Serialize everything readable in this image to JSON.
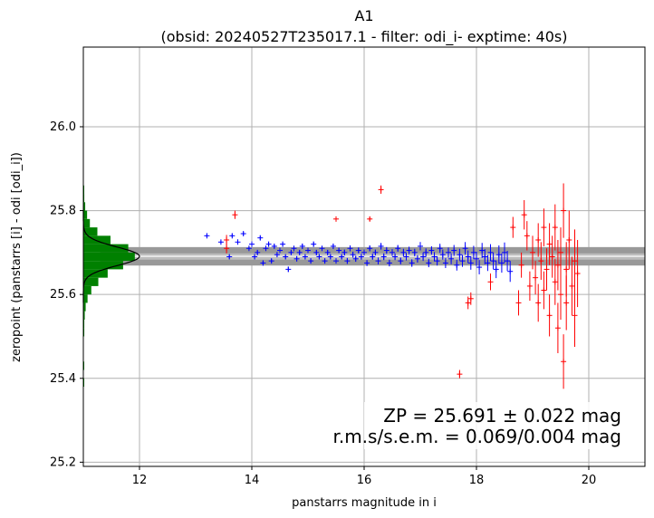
{
  "chart_data": {
    "type": "scatter",
    "title": "A1",
    "subtitle": "(obsid: 20240527T235017.1 - filter: odi_i- exptime: 40s)",
    "xlabel": "panstarrs magnitude in i",
    "ylabel": "zeropoint (panstarrs [i] - odi [odi_i])",
    "xlim": [
      11.0,
      21.0
    ],
    "ylim": [
      25.19,
      26.19
    ],
    "x_ticks": [
      12,
      14,
      16,
      18,
      20
    ],
    "y_ticks": [
      25.2,
      25.4,
      25.6,
      25.8,
      26.0
    ],
    "grid": true,
    "zeropoint": 25.691,
    "zeropoint_band": [
      25.669,
      25.713
    ],
    "inner_band": [
      25.683,
      25.698
    ],
    "colors": {
      "used": "#0000ff",
      "rejected": "#ff0000",
      "histogram": "#008000",
      "band": "#999999",
      "gaussian": "#000000",
      "grid": "#b0b0b0"
    },
    "series": [
      {
        "role": "used",
        "points": [
          [
            13.2,
            25.74,
            0.004
          ],
          [
            13.45,
            25.725,
            0.004
          ],
          [
            13.6,
            25.69,
            0.005
          ],
          [
            13.65,
            25.74,
            0.004
          ],
          [
            13.75,
            25.725,
            0.004
          ],
          [
            13.85,
            25.745,
            0.004
          ],
          [
            13.95,
            25.71,
            0.004
          ],
          [
            14.0,
            25.72,
            0.005
          ],
          [
            14.05,
            25.69,
            0.005
          ],
          [
            14.1,
            25.7,
            0.005
          ],
          [
            14.15,
            25.735,
            0.005
          ],
          [
            14.2,
            25.675,
            0.005
          ],
          [
            14.25,
            25.71,
            0.005
          ],
          [
            14.3,
            25.72,
            0.005
          ],
          [
            14.35,
            25.68,
            0.005
          ],
          [
            14.4,
            25.715,
            0.005
          ],
          [
            14.45,
            25.695,
            0.005
          ],
          [
            14.5,
            25.705,
            0.005
          ],
          [
            14.55,
            25.72,
            0.005
          ],
          [
            14.6,
            25.69,
            0.005
          ],
          [
            14.65,
            25.66,
            0.006
          ],
          [
            14.7,
            25.7,
            0.005
          ],
          [
            14.75,
            25.71,
            0.005
          ],
          [
            14.8,
            25.685,
            0.006
          ],
          [
            14.85,
            25.7,
            0.005
          ],
          [
            14.9,
            25.715,
            0.006
          ],
          [
            14.95,
            25.69,
            0.006
          ],
          [
            15.0,
            25.705,
            0.006
          ],
          [
            15.05,
            25.68,
            0.006
          ],
          [
            15.1,
            25.72,
            0.006
          ],
          [
            15.15,
            25.7,
            0.006
          ],
          [
            15.2,
            25.69,
            0.006
          ],
          [
            15.25,
            25.71,
            0.006
          ],
          [
            15.3,
            25.68,
            0.006
          ],
          [
            15.35,
            25.7,
            0.006
          ],
          [
            15.4,
            25.69,
            0.006
          ],
          [
            15.45,
            25.715,
            0.006
          ],
          [
            15.5,
            25.68,
            0.006
          ],
          [
            15.55,
            25.705,
            0.006
          ],
          [
            15.6,
            25.69,
            0.006
          ],
          [
            15.65,
            25.7,
            0.007
          ],
          [
            15.7,
            25.68,
            0.007
          ],
          [
            15.75,
            25.71,
            0.007
          ],
          [
            15.8,
            25.695,
            0.007
          ],
          [
            15.85,
            25.685,
            0.007
          ],
          [
            15.9,
            25.705,
            0.007
          ],
          [
            15.95,
            25.69,
            0.007
          ],
          [
            16.0,
            25.7,
            0.007
          ],
          [
            16.05,
            25.675,
            0.007
          ],
          [
            16.1,
            25.71,
            0.007
          ],
          [
            16.15,
            25.69,
            0.007
          ],
          [
            16.2,
            25.7,
            0.007
          ],
          [
            16.25,
            25.68,
            0.008
          ],
          [
            16.3,
            25.715,
            0.008
          ],
          [
            16.35,
            25.69,
            0.008
          ],
          [
            16.4,
            25.705,
            0.008
          ],
          [
            16.45,
            25.675,
            0.008
          ],
          [
            16.5,
            25.7,
            0.008
          ],
          [
            16.55,
            25.69,
            0.008
          ],
          [
            16.6,
            25.71,
            0.008
          ],
          [
            16.65,
            25.68,
            0.008
          ],
          [
            16.7,
            25.7,
            0.009
          ],
          [
            16.75,
            25.69,
            0.009
          ],
          [
            16.8,
            25.705,
            0.009
          ],
          [
            16.85,
            25.675,
            0.009
          ],
          [
            16.9,
            25.7,
            0.009
          ],
          [
            16.95,
            25.685,
            0.009
          ],
          [
            17.0,
            25.715,
            0.01
          ],
          [
            17.05,
            25.69,
            0.01
          ],
          [
            17.1,
            25.7,
            0.01
          ],
          [
            17.15,
            25.675,
            0.01
          ],
          [
            17.2,
            25.705,
            0.01
          ],
          [
            17.25,
            25.69,
            0.011
          ],
          [
            17.3,
            25.68,
            0.011
          ],
          [
            17.35,
            25.71,
            0.011
          ],
          [
            17.4,
            25.695,
            0.012
          ],
          [
            17.45,
            25.675,
            0.012
          ],
          [
            17.5,
            25.7,
            0.012
          ],
          [
            17.55,
            25.685,
            0.013
          ],
          [
            17.6,
            25.705,
            0.013
          ],
          [
            17.65,
            25.67,
            0.013
          ],
          [
            17.7,
            25.695,
            0.014
          ],
          [
            17.75,
            25.68,
            0.014
          ],
          [
            17.8,
            25.71,
            0.015
          ],
          [
            17.85,
            25.69,
            0.015
          ],
          [
            17.9,
            25.675,
            0.016
          ],
          [
            17.95,
            25.7,
            0.016
          ],
          [
            18.0,
            25.685,
            0.017
          ],
          [
            18.05,
            25.665,
            0.017
          ],
          [
            18.1,
            25.705,
            0.018
          ],
          [
            18.15,
            25.69,
            0.018
          ],
          [
            18.2,
            25.675,
            0.019
          ],
          [
            18.25,
            25.7,
            0.02
          ],
          [
            18.3,
            25.68,
            0.02
          ],
          [
            18.35,
            25.66,
            0.021
          ],
          [
            18.4,
            25.695,
            0.022
          ],
          [
            18.45,
            25.675,
            0.023
          ],
          [
            18.5,
            25.7,
            0.024
          ],
          [
            18.55,
            25.68,
            0.024
          ],
          [
            18.6,
            25.655,
            0.025
          ]
        ]
      },
      {
        "role": "rejected",
        "points": [
          [
            13.55,
            25.73,
            0.012
          ],
          [
            13.55,
            25.71,
            0.012
          ],
          [
            13.7,
            25.79,
            0.01
          ],
          [
            15.5,
            25.78,
            0.005
          ],
          [
            16.1,
            25.78,
            0.005
          ],
          [
            16.3,
            25.85,
            0.01
          ],
          [
            17.7,
            25.41,
            0.01
          ],
          [
            17.85,
            25.58,
            0.015
          ],
          [
            17.9,
            25.59,
            0.015
          ],
          [
            18.25,
            25.63,
            0.02
          ],
          [
            18.65,
            25.76,
            0.025
          ],
          [
            18.75,
            25.58,
            0.03
          ],
          [
            18.8,
            25.67,
            0.03
          ],
          [
            18.85,
            25.79,
            0.035
          ],
          [
            18.9,
            25.74,
            0.035
          ],
          [
            18.95,
            25.62,
            0.035
          ],
          [
            19.0,
            25.7,
            0.04
          ],
          [
            19.05,
            25.64,
            0.04
          ],
          [
            19.1,
            25.73,
            0.04
          ],
          [
            19.1,
            25.58,
            0.045
          ],
          [
            19.15,
            25.68,
            0.045
          ],
          [
            19.2,
            25.61,
            0.045
          ],
          [
            19.2,
            25.76,
            0.045
          ],
          [
            19.25,
            25.66,
            0.05
          ],
          [
            19.3,
            25.72,
            0.05
          ],
          [
            19.3,
            25.55,
            0.05
          ],
          [
            19.35,
            25.69,
            0.05
          ],
          [
            19.4,
            25.63,
            0.055
          ],
          [
            19.4,
            25.76,
            0.055
          ],
          [
            19.45,
            25.52,
            0.06
          ],
          [
            19.45,
            25.67,
            0.06
          ],
          [
            19.5,
            25.7,
            0.06
          ],
          [
            19.5,
            25.6,
            0.06
          ],
          [
            19.55,
            25.44,
            0.065
          ],
          [
            19.55,
            25.8,
            0.065
          ],
          [
            19.6,
            25.66,
            0.065
          ],
          [
            19.6,
            25.58,
            0.065
          ],
          [
            19.65,
            25.73,
            0.07
          ],
          [
            19.7,
            25.62,
            0.07
          ],
          [
            19.75,
            25.68,
            0.075
          ],
          [
            19.75,
            25.55,
            0.075
          ],
          [
            19.8,
            25.65,
            0.08
          ]
        ]
      }
    ],
    "histogram": {
      "bin_edges": [
        25.38,
        25.4,
        25.42,
        25.44,
        25.46,
        25.48,
        25.5,
        25.52,
        25.54,
        25.56,
        25.58,
        25.6,
        25.62,
        25.64,
        25.66,
        25.68,
        25.7,
        25.72,
        25.74,
        25.76,
        25.78,
        25.8,
        25.82,
        25.84,
        25.86
      ],
      "counts": [
        1,
        0,
        1,
        0,
        0,
        0,
        2,
        2,
        3,
        5,
        9,
        17,
        32,
        52,
        85,
        110,
        96,
        58,
        30,
        14,
        8,
        4,
        2,
        1
      ],
      "max_count": 120
    },
    "annotation": {
      "line1": "ZP = 25.691 ± 0.022 mag",
      "line2": "r.m.s/s.e.m. = 0.069/0.004 mag"
    }
  }
}
